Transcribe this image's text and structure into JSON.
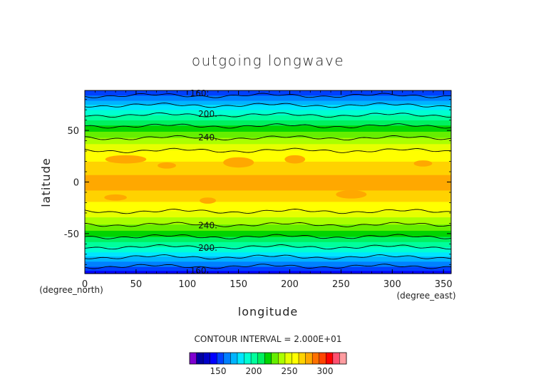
{
  "chart_data": {
    "type": "heatmap",
    "title": "outgoing longwave",
    "xlabel": "longitude",
    "ylabel": "latitude",
    "x_unit": "(degree_east)",
    "y_unit": "(degree_north)",
    "xlim": [
      0,
      357.5
    ],
    "ylim": [
      -88.75,
      88.75
    ],
    "x_ticks": [
      0,
      50,
      100,
      150,
      200,
      250,
      300,
      350
    ],
    "y_ticks": [
      -50,
      0,
      50
    ],
    "contour_interval_text": "CONTOUR INTERVAL = 2.000E+01",
    "contour_labels": [
      {
        "text": "160.",
        "lon": 112,
        "lat": 86
      },
      {
        "text": "200.",
        "lon": 120,
        "lat": 66
      },
      {
        "text": "240.",
        "lon": 120,
        "lat": 43
      },
      {
        "text": "240.",
        "lon": 120,
        "lat": -42
      },
      {
        "text": "200.",
        "lon": 120,
        "lat": -64
      },
      {
        "text": "160.",
        "lon": 112,
        "lat": -86
      }
    ],
    "latitude_profile": [
      {
        "lat": 88.75,
        "olr": 150
      },
      {
        "lat": 80,
        "olr": 168
      },
      {
        "lat": 70,
        "olr": 190
      },
      {
        "lat": 60,
        "olr": 210
      },
      {
        "lat": 50,
        "olr": 228
      },
      {
        "lat": 40,
        "olr": 245
      },
      {
        "lat": 32,
        "olr": 258
      },
      {
        "lat": 25,
        "olr": 268
      },
      {
        "lat": 15,
        "olr": 272
      },
      {
        "lat": 5,
        "olr": 282
      },
      {
        "lat": -5,
        "olr": 283
      },
      {
        "lat": -15,
        "olr": 273
      },
      {
        "lat": -25,
        "olr": 266
      },
      {
        "lat": -32,
        "olr": 254
      },
      {
        "lat": -40,
        "olr": 242
      },
      {
        "lat": -50,
        "olr": 226
      },
      {
        "lat": -60,
        "olr": 206
      },
      {
        "lat": -70,
        "olr": 186
      },
      {
        "lat": -80,
        "olr": 164
      },
      {
        "lat": -88.75,
        "olr": 145
      }
    ],
    "colorbar": {
      "min": 110,
      "max": 330,
      "step": 10,
      "ticks": [
        150,
        200,
        250,
        300
      ],
      "colors": [
        "#7f00d0",
        "#0000a0",
        "#0000c8",
        "#0000ff",
        "#0040ff",
        "#0080ff",
        "#00b4ff",
        "#00e6ff",
        "#00ffd2",
        "#00ff9c",
        "#00f060",
        "#00d400",
        "#66ee00",
        "#aaff00",
        "#e6ff00",
        "#ffff00",
        "#ffd200",
        "#ffa800",
        "#ff7000",
        "#ff4400",
        "#ff0000",
        "#ff5070",
        "#ff9ca0"
      ]
    }
  }
}
